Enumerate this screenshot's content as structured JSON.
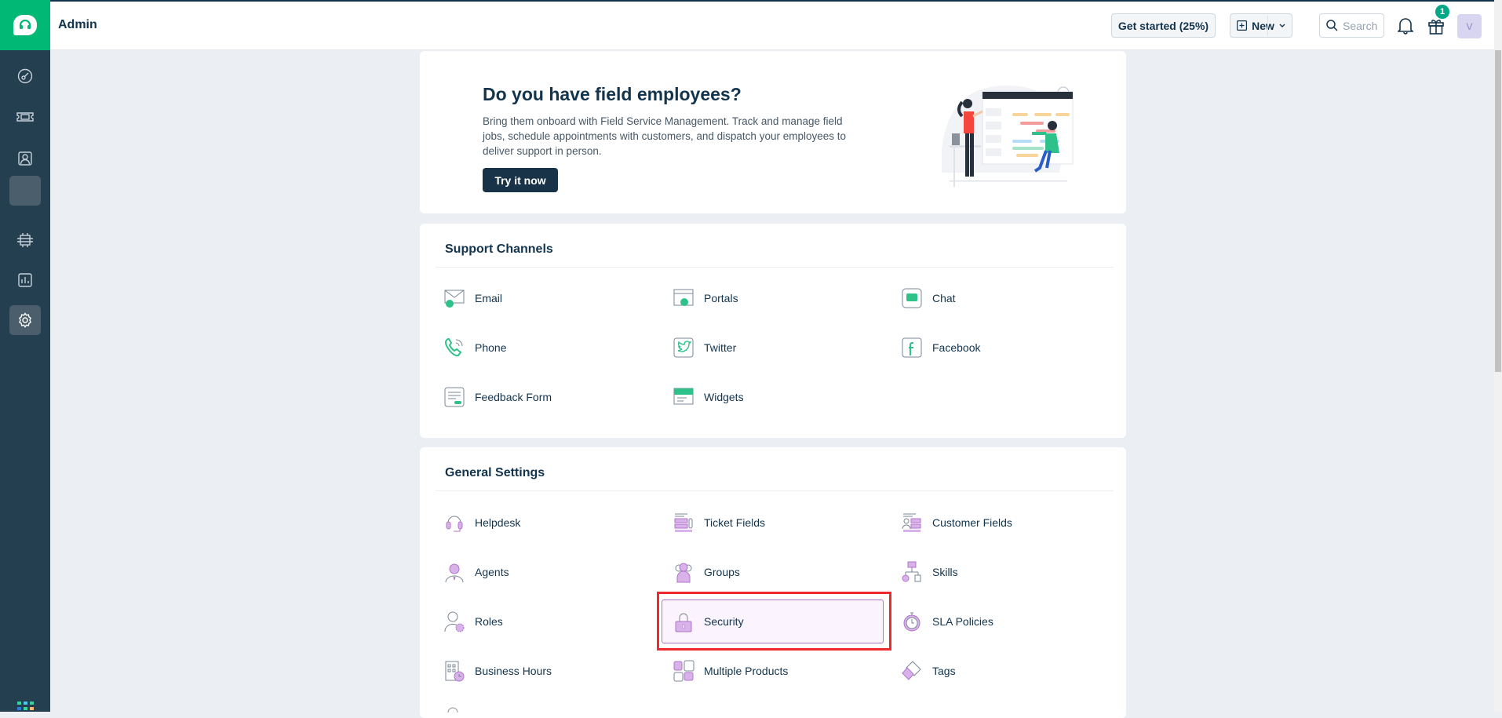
{
  "header": {
    "title": "Admin",
    "get_started": "Get started (25%)",
    "new_label": "New",
    "search_placeholder": "Search",
    "gift_badge": "1",
    "avatar": "V"
  },
  "sidebar": {
    "items": [
      "dashboard-icon",
      "tickets-icon",
      "contacts-icon",
      "solutions-icon",
      "forums-icon",
      "reports-icon",
      "admin-gear-icon"
    ],
    "active": "admin-gear-icon"
  },
  "promo": {
    "title": "Do you have field employees?",
    "description": "Bring them onboard with Field Service Management. Track and manage field jobs, schedule appointments with customers, and dispatch your employees to deliver support in person.",
    "button": "Try it now"
  },
  "support_channels": {
    "title": "Support Channels",
    "items": [
      "Email",
      "Portals",
      "Chat",
      "Phone",
      "Twitter",
      "Facebook",
      "Feedback Form",
      "Widgets"
    ]
  },
  "general_settings": {
    "title": "General Settings",
    "items": [
      "Helpdesk",
      "Ticket Fields",
      "Customer Fields",
      "Agents",
      "Groups",
      "Skills",
      "Roles",
      "Security",
      "SLA Policies",
      "Business Hours",
      "Multiple Products",
      "Tags"
    ],
    "highlighted": "Security"
  },
  "colors": {
    "brand": "#02b875",
    "sidebar": "#233f50",
    "channel_icon": "#2ec28a",
    "settings_icon": "#c48ede",
    "highlight": "#f0292e"
  }
}
